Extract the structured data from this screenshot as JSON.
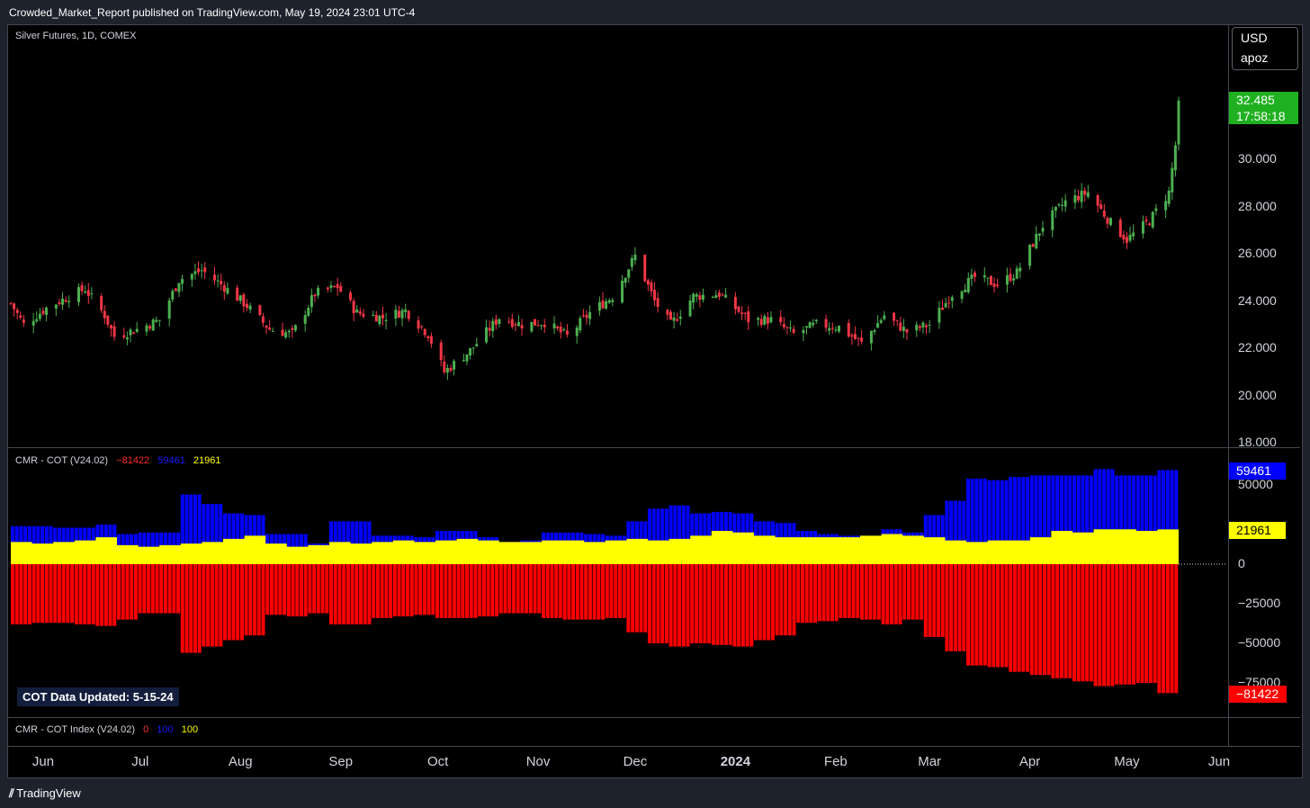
{
  "header": {
    "published_text": "Crowded_Market_Report published on TradingView.com, May 19, 2024 23:01 UTC-4"
  },
  "currency_box": {
    "currency": "USD",
    "user": "apoz"
  },
  "main_legend": {
    "title": "Silver Futures, 1D, COMEX"
  },
  "price_tag": {
    "price": "32.485",
    "countdown": "17:58:18",
    "color": "#1fb01f"
  },
  "price_axis": [
    "30.000",
    "28.000",
    "26.000",
    "24.000",
    "22.000",
    "20.000",
    "18.000"
  ],
  "cot_legend": {
    "title": "CMR - COT (V24.02)",
    "v1": "−81422",
    "v2": "59461",
    "v3": "21961"
  },
  "cot_axis": [
    "50000",
    "0",
    "−25000",
    "−50000",
    "−75000"
  ],
  "cot_tags": {
    "blue": "59461",
    "yellow": "21961",
    "red": "−81422"
  },
  "cot_badge": {
    "label": "COT Data Updated:",
    "date": "5-15-24"
  },
  "index_legend": {
    "title": "CMR - COT Index (V24.02)",
    "v1": "0",
    "v2": "100",
    "v3": "100"
  },
  "x_axis": [
    {
      "label": "Jun",
      "bold": false
    },
    {
      "label": "Jul",
      "bold": false
    },
    {
      "label": "Aug",
      "bold": false
    },
    {
      "label": "Sep",
      "bold": false
    },
    {
      "label": "Oct",
      "bold": false
    },
    {
      "label": "Nov",
      "bold": false
    },
    {
      "label": "Dec",
      "bold": false
    },
    {
      "label": "2024",
      "bold": true
    },
    {
      "label": "Feb",
      "bold": false
    },
    {
      "label": "Mar",
      "bold": false
    },
    {
      "label": "Apr",
      "bold": false
    },
    {
      "label": "May",
      "bold": false
    },
    {
      "label": "Jun",
      "bold": false
    }
  ],
  "footer": {
    "brand": "TradingView"
  },
  "colors": {
    "up": "#4caf50",
    "down": "#f23645",
    "blue": "#0000ff",
    "yellow": "#ffff00",
    "red": "#ff0000"
  },
  "chart_data": [
    {
      "type": "candlestick",
      "title": "Silver Futures, 1D, COMEX",
      "ylim": [
        18,
        33
      ],
      "x_range": [
        "2023-05-22",
        "2024-05-17"
      ],
      "close_path": [
        [
          "2023-05-22",
          23.9
        ],
        [
          "2023-05-26",
          23.0
        ],
        [
          "2023-06-02",
          23.7
        ],
        [
          "2023-06-09",
          24.2
        ],
        [
          "2023-06-14",
          24.5
        ],
        [
          "2023-06-20",
          23.4
        ],
        [
          "2023-06-23",
          22.5
        ],
        [
          "2023-06-30",
          22.8
        ],
        [
          "2023-07-07",
          23.2
        ],
        [
          "2023-07-13",
          24.9
        ],
        [
          "2023-07-20",
          25.3
        ],
        [
          "2023-07-27",
          24.6
        ],
        [
          "2023-08-03",
          23.8
        ],
        [
          "2023-08-10",
          22.8
        ],
        [
          "2023-08-17",
          22.6
        ],
        [
          "2023-08-24",
          24.3
        ],
        [
          "2023-08-31",
          24.6
        ],
        [
          "2023-09-06",
          23.5
        ],
        [
          "2023-09-14",
          23.3
        ],
        [
          "2023-09-21",
          23.6
        ],
        [
          "2023-09-28",
          22.6
        ],
        [
          "2023-10-03",
          21.0
        ],
        [
          "2023-10-11",
          21.9
        ],
        [
          "2023-10-20",
          23.3
        ],
        [
          "2023-10-27",
          23.0
        ],
        [
          "2023-11-03",
          23.1
        ],
        [
          "2023-11-10",
          22.5
        ],
        [
          "2023-11-17",
          23.5
        ],
        [
          "2023-11-24",
          24.2
        ],
        [
          "2023-12-01",
          25.9
        ],
        [
          "2023-12-07",
          24.0
        ],
        [
          "2023-12-12",
          23.0
        ],
        [
          "2023-12-19",
          24.2
        ],
        [
          "2023-12-27",
          24.3
        ],
        [
          "2024-01-05",
          23.2
        ],
        [
          "2024-01-12",
          23.2
        ],
        [
          "2024-01-19",
          22.6
        ],
        [
          "2024-01-26",
          23.0
        ],
        [
          "2024-02-02",
          22.9
        ],
        [
          "2024-02-09",
          22.2
        ],
        [
          "2024-02-16",
          23.4
        ],
        [
          "2024-02-23",
          22.7
        ],
        [
          "2024-03-01",
          23.0
        ],
        [
          "2024-03-08",
          24.3
        ],
        [
          "2024-03-15",
          25.0
        ],
        [
          "2024-03-22",
          24.7
        ],
        [
          "2024-03-28",
          25.2
        ],
        [
          "2024-04-05",
          27.2
        ],
        [
          "2024-04-12",
          28.2
        ],
        [
          "2024-04-19",
          28.6
        ],
        [
          "2024-04-26",
          27.3
        ],
        [
          "2024-05-01",
          26.6
        ],
        [
          "2024-05-08",
          27.4
        ],
        [
          "2024-05-14",
          28.6
        ],
        [
          "2024-05-17",
          31.6
        ]
      ],
      "last_price": 32.485
    },
    {
      "type": "bar",
      "title": "CMR - COT (V24.02)",
      "ylim": [
        -85000,
        60000
      ],
      "x_range": [
        "2023-05-22",
        "2024-05-17"
      ],
      "series": [
        {
          "name": "blue",
          "color": "#0000ff",
          "values": [
            24000,
            24000,
            23000,
            23000,
            25000,
            19000,
            20000,
            20000,
            44000,
            38000,
            32000,
            31000,
            19000,
            19000,
            13000,
            27000,
            27000,
            18000,
            18000,
            17000,
            21000,
            21000,
            17000,
            14000,
            15000,
            20000,
            20000,
            19000,
            18000,
            27000,
            35000,
            37000,
            32000,
            33000,
            32000,
            27000,
            26000,
            21000,
            19000,
            18000,
            18000,
            22000,
            20000,
            31000,
            40000,
            54000,
            53000,
            55000,
            56000,
            56000,
            56000,
            60000,
            56000,
            56000,
            59461
          ]
        },
        {
          "name": "red",
          "color": "#ff0000",
          "values": [
            -38000,
            -37000,
            -37000,
            -38000,
            -39000,
            -35000,
            -31000,
            -31000,
            -56000,
            -52000,
            -48000,
            -45000,
            -32000,
            -33000,
            -31000,
            -38000,
            -38000,
            -34000,
            -33000,
            -32000,
            -34000,
            -34000,
            -33000,
            -31000,
            -31000,
            -34000,
            -35000,
            -35000,
            -34000,
            -43000,
            -50000,
            -52000,
            -50000,
            -51000,
            -52000,
            -48000,
            -45000,
            -37000,
            -36000,
            -34000,
            -35000,
            -38000,
            -35000,
            -46000,
            -55000,
            -64000,
            -65000,
            -68000,
            -70000,
            -72000,
            -74000,
            -77000,
            -76000,
            -75000,
            -81422
          ]
        },
        {
          "name": "yellow",
          "color": "#ffff00",
          "values": [
            14000,
            13000,
            14000,
            15000,
            17000,
            12000,
            11000,
            12000,
            13000,
            14000,
            16000,
            18000,
            13000,
            11000,
            12000,
            14000,
            13000,
            14000,
            15000,
            14000,
            15000,
            16000,
            15000,
            14000,
            14000,
            15000,
            15000,
            14000,
            15000,
            16000,
            15000,
            16000,
            18000,
            21000,
            20000,
            18000,
            17000,
            17000,
            17000,
            17000,
            18000,
            19000,
            18000,
            17000,
            15000,
            14000,
            15000,
            15000,
            17000,
            21000,
            20000,
            22000,
            22000,
            21000,
            21961
          ]
        }
      ]
    }
  ]
}
